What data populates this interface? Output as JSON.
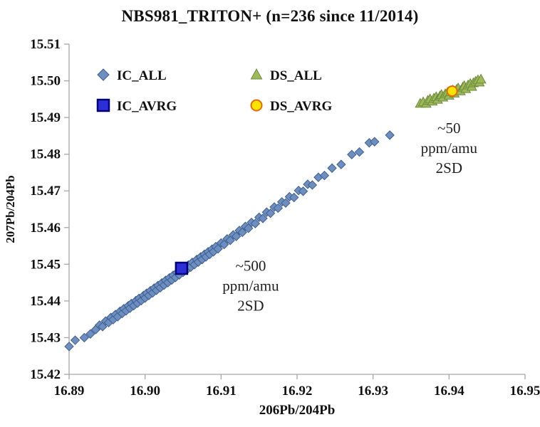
{
  "title": "NBS981_TRITON+ (n=236 since 11/2014)",
  "chart_data": {
    "type": "scatter",
    "title": "NBS981_TRITON+ (n=236 since 11/2014)",
    "xlabel": "206Pb/204Pb",
    "ylabel": "207Pb/204Pb",
    "xlim": [
      16.89,
      16.95
    ],
    "ylim": [
      15.42,
      15.51
    ],
    "grid": false,
    "legend_position": "top-left-inside",
    "xticks": [
      16.89,
      16.9,
      16.91,
      16.92,
      16.93,
      16.94,
      16.95
    ],
    "xtick_labels": [
      "16.89",
      "16.90",
      "16.91",
      "16.92",
      "16.93",
      "16.94",
      "16.95"
    ],
    "yticks": [
      15.42,
      15.43,
      15.44,
      15.45,
      15.46,
      15.47,
      15.48,
      15.49,
      15.5,
      15.51
    ],
    "ytick_labels": [
      "15.42",
      "15.43",
      "15.44",
      "15.45",
      "15.46",
      "15.47",
      "15.48",
      "15.49",
      "15.50",
      "15.51"
    ],
    "axis_color": "#a6a6a6",
    "text_color": "#111111",
    "series": [
      {
        "name": "IC_ALL",
        "marker": "diamond",
        "fill": "#6d8fbf",
        "stroke": "#3f5e91",
        "size": 6,
        "stroke_width": 1,
        "points": [
          [
            16.89,
            15.4276
          ],
          [
            16.8908,
            15.4293
          ],
          [
            16.892,
            15.43
          ],
          [
            16.8928,
            15.431
          ],
          [
            16.8935,
            15.4322
          ],
          [
            16.894,
            15.4334
          ],
          [
            16.8944,
            15.433
          ],
          [
            16.8948,
            15.4345
          ],
          [
            16.8952,
            15.4341
          ],
          [
            16.8955,
            15.4355
          ],
          [
            16.8958,
            15.4349
          ],
          [
            16.8961,
            15.4363
          ],
          [
            16.8964,
            15.4357
          ],
          [
            16.8967,
            15.4372
          ],
          [
            16.897,
            15.4366
          ],
          [
            16.8972,
            15.4379
          ],
          [
            16.8975,
            15.4373
          ],
          [
            16.8978,
            15.4387
          ],
          [
            16.898,
            15.438
          ],
          [
            16.8982,
            15.4393
          ],
          [
            16.8985,
            15.4387
          ],
          [
            16.8988,
            15.4401
          ],
          [
            16.899,
            15.4394
          ],
          [
            16.8992,
            15.4407
          ],
          [
            16.8995,
            15.4401
          ],
          [
            16.8998,
            15.4415
          ],
          [
            16.9,
            15.4408
          ],
          [
            16.9002,
            15.4421
          ],
          [
            16.9005,
            15.4415
          ],
          [
            16.9007,
            15.4428
          ],
          [
            16.901,
            15.4422
          ],
          [
            16.9012,
            15.4435
          ],
          [
            16.9015,
            15.4429
          ],
          [
            16.9017,
            15.4442
          ],
          [
            16.902,
            15.4436
          ],
          [
            16.9022,
            15.4449
          ],
          [
            16.9025,
            15.4443
          ],
          [
            16.9027,
            15.4456
          ],
          [
            16.903,
            15.445
          ],
          [
            16.9032,
            15.4463
          ],
          [
            16.9035,
            15.4457
          ],
          [
            16.9037,
            15.447
          ],
          [
            16.904,
            15.4464
          ],
          [
            16.9042,
            15.4477
          ],
          [
            16.9045,
            15.4471
          ],
          [
            16.9047,
            15.4484
          ],
          [
            16.905,
            15.4478
          ],
          [
            16.9052,
            15.4491
          ],
          [
            16.9055,
            15.4485
          ],
          [
            16.9057,
            15.4498
          ],
          [
            16.906,
            15.4492
          ],
          [
            16.9062,
            15.4505
          ],
          [
            16.9065,
            15.4499
          ],
          [
            16.9068,
            15.4513
          ],
          [
            16.907,
            15.4506
          ],
          [
            16.9073,
            15.452
          ],
          [
            16.9075,
            15.4513
          ],
          [
            16.9078,
            15.4527
          ],
          [
            16.908,
            15.452
          ],
          [
            16.9083,
            15.4534
          ],
          [
            16.9085,
            15.4527
          ],
          [
            16.9088,
            15.4541
          ],
          [
            16.909,
            15.4534
          ],
          [
            16.9093,
            15.4548
          ],
          [
            16.9096,
            15.4542
          ],
          [
            16.91,
            15.4558
          ],
          [
            16.9104,
            15.4554
          ],
          [
            16.9108,
            15.4569
          ],
          [
            16.9112,
            15.4565
          ],
          [
            16.9116,
            15.458
          ],
          [
            16.912,
            15.4576
          ],
          [
            16.9124,
            15.4592
          ],
          [
            16.9128,
            15.4587
          ],
          [
            16.9132,
            15.4603
          ],
          [
            16.9136,
            15.4598
          ],
          [
            16.914,
            15.4614
          ],
          [
            16.9145,
            15.4611
          ],
          [
            16.915,
            15.4628
          ],
          [
            16.9155,
            15.4625
          ],
          [
            16.916,
            15.4642
          ],
          [
            16.9165,
            15.4639
          ],
          [
            16.917,
            15.4656
          ],
          [
            16.9175,
            15.4653
          ],
          [
            16.918,
            15.467
          ],
          [
            16.9185,
            15.4667
          ],
          [
            16.919,
            15.4684
          ],
          [
            16.9196,
            15.4682
          ],
          [
            16.9202,
            15.4701
          ],
          [
            16.9208,
            15.4699
          ],
          [
            16.9214,
            15.4718
          ],
          [
            16.922,
            15.4716
          ],
          [
            16.9228,
            15.4737
          ],
          [
            16.9236,
            15.4742
          ],
          [
            16.9246,
            15.4762
          ],
          [
            16.9258,
            15.4772
          ],
          [
            16.9272,
            15.4799
          ],
          [
            16.9282,
            15.4806
          ],
          [
            16.9295,
            15.4831
          ],
          [
            16.9302,
            15.4834
          ],
          [
            16.9322,
            15.4852
          ]
        ]
      },
      {
        "name": "DS_ALL",
        "marker": "triangle",
        "fill": "#9bbb59",
        "stroke": "#71893f",
        "size": 7,
        "stroke_width": 1,
        "points": [
          [
            16.9362,
            15.4938
          ],
          [
            16.9366,
            15.4942
          ],
          [
            16.937,
            15.4938
          ],
          [
            16.9372,
            15.4946
          ],
          [
            16.9375,
            15.495
          ],
          [
            16.9378,
            15.4944
          ],
          [
            16.938,
            15.4952
          ],
          [
            16.9383,
            15.4956
          ],
          [
            16.9385,
            15.4949
          ],
          [
            16.9388,
            15.4958
          ],
          [
            16.939,
            15.4962
          ],
          [
            16.9392,
            15.4955
          ],
          [
            16.9395,
            15.4964
          ],
          [
            16.9398,
            15.4968
          ],
          [
            16.94,
            15.496
          ],
          [
            16.9402,
            15.497
          ],
          [
            16.9405,
            15.4974
          ],
          [
            16.9407,
            15.4966
          ],
          [
            16.941,
            15.4976
          ],
          [
            16.9412,
            15.498
          ],
          [
            16.9415,
            15.4972
          ],
          [
            16.9418,
            15.4982
          ],
          [
            16.942,
            15.4986
          ],
          [
            16.9422,
            15.4978
          ],
          [
            16.9425,
            15.4988
          ],
          [
            16.9428,
            15.4992
          ],
          [
            16.943,
            15.4984
          ],
          [
            16.9432,
            15.4994
          ],
          [
            16.9435,
            15.4998
          ],
          [
            16.9438,
            15.5002
          ],
          [
            16.944,
            15.4996
          ],
          [
            16.9442,
            15.5004
          ]
        ]
      },
      {
        "name": "IC_AVRG",
        "marker": "square",
        "fill": "#2e2ed6",
        "stroke": "#00007a",
        "size": 8,
        "stroke_width": 2.5,
        "points": [
          [
            16.9048,
            15.4489
          ]
        ]
      },
      {
        "name": "DS_AVRG",
        "marker": "circle",
        "fill": "#ffe400",
        "stroke": "#e36c0a",
        "size": 7,
        "stroke_width": 2,
        "points": [
          [
            16.9404,
            15.4972
          ]
        ]
      }
    ],
    "legend": {
      "items": [
        {
          "label": "IC_ALL",
          "marker": "diamond",
          "fill": "#6d8fbf",
          "stroke": "#3f5e91"
        },
        {
          "label": "DS_ALL",
          "marker": "triangle",
          "fill": "#9bbb59",
          "stroke": "#71893f"
        },
        {
          "label": "IC_AVRG",
          "marker": "square",
          "fill": "#2e2ed6",
          "stroke": "#00007a"
        },
        {
          "label": "DS_AVRG",
          "marker": "circle",
          "fill": "#ffe400",
          "stroke": "#e36c0a"
        }
      ],
      "columns": 2
    },
    "annotations": [
      {
        "lines": [
          "~50",
          "ppm/amu",
          "2SD"
        ],
        "x": 16.94,
        "y": 15.4858
      },
      {
        "lines": [
          "~500",
          "ppm/amu",
          "2SD"
        ],
        "x": 16.9139,
        "y": 15.4482
      }
    ]
  }
}
